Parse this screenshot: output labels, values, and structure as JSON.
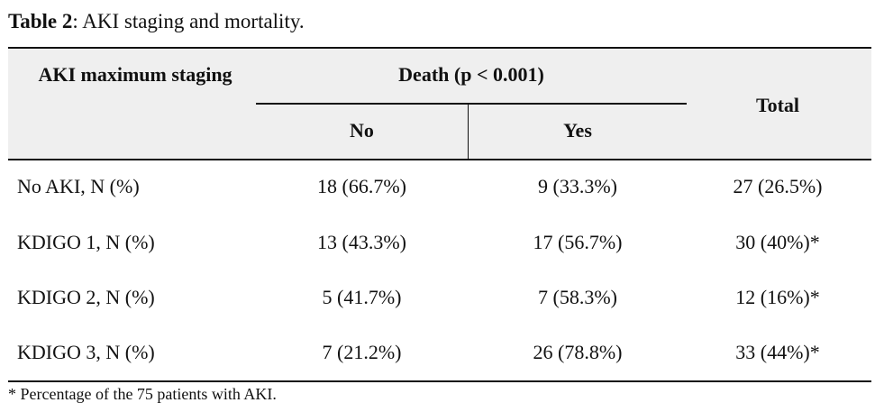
{
  "caption": {
    "label": "Table 2",
    "text": ": AKI staging and mortality."
  },
  "headers": {
    "staging": "AKI maximum staging",
    "death_group": "Death (p < 0.001)",
    "no": "No",
    "yes": "Yes",
    "total": "Total"
  },
  "rows": [
    {
      "stage": "No AKI, N (%)",
      "no": "18 (66.7%)",
      "yes": "9 (33.3%)",
      "total": "27 (26.5%)"
    },
    {
      "stage": "KDIGO 1, N (%)",
      "no": "13 (43.3%)",
      "yes": "17 (56.7%)",
      "total": "30 (40%)*"
    },
    {
      "stage": "KDIGO 2, N (%)",
      "no": "5 (41.7%)",
      "yes": "7 (58.3%)",
      "total": "12 (16%)*"
    },
    {
      "stage": "KDIGO 3, N (%)",
      "no": "7 (21.2%)",
      "yes": "26 (78.8%)",
      "total": "33 (44%)*"
    }
  ],
  "footnote": "* Percentage of the 75 patients with AKI."
}
